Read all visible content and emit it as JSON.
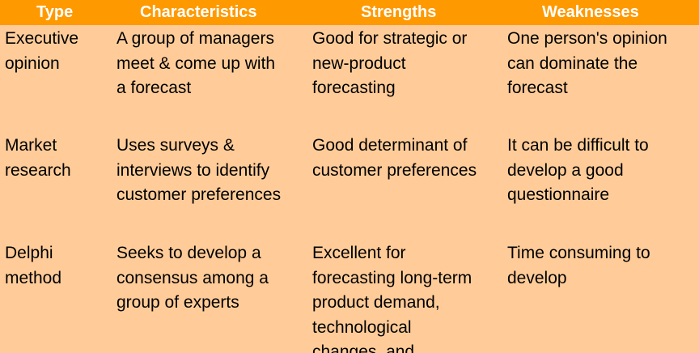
{
  "header": {
    "type": "Type",
    "characteristics": "Characteristics",
    "strengths": "Strengths",
    "weaknesses": "Weaknesses"
  },
  "rows": [
    {
      "type": [
        "Executive",
        "opinion"
      ],
      "characteristics": [
        "A group of managers",
        "meet & come up with",
        "a forecast"
      ],
      "strengths": [
        "Good for strategic or",
        "new-product",
        "forecasting"
      ],
      "weaknesses": [
        "One person's opinion",
        "can dominate the",
        "forecast"
      ]
    },
    {
      "type": [
        "Market",
        "research"
      ],
      "characteristics": [
        "Uses surveys &",
        "interviews to identify",
        "customer preferences"
      ],
      "strengths": [
        "Good determinant of",
        "customer preferences"
      ],
      "weaknesses": [
        "It can be difficult to",
        "develop a good",
        "questionnaire"
      ]
    },
    {
      "type": [
        "Delphi",
        "method"
      ],
      "characteristics": [
        "Seeks to develop a",
        "consensus among a",
        "group of experts"
      ],
      "strengths": [
        "Excellent for",
        "forecasting long-term",
        "product demand,",
        "technological",
        "changes, and"
      ],
      "weaknesses": [
        "Time consuming to",
        "develop"
      ]
    }
  ]
}
